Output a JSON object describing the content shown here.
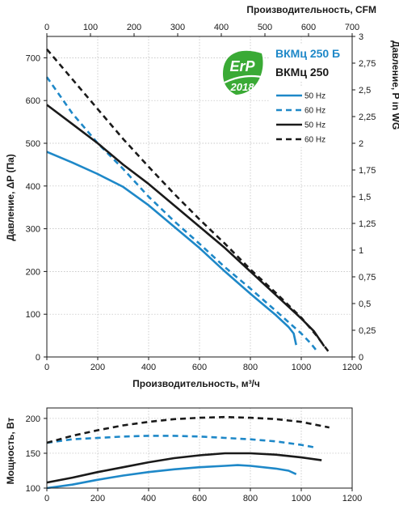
{
  "colors": {
    "blue": "#1e88c8",
    "black": "#1a1a1a",
    "erp_green": "#3aaa35",
    "model1_color": "#1e88c8",
    "model2_color": "#1a1a1a"
  },
  "badge": {
    "line1": "ErP",
    "line2": "2018"
  },
  "models": [
    "ВКМц 250 Б",
    "ВКМц 250"
  ],
  "chart_data": [
    {
      "type": "line",
      "xlabel": "Производительность, м³/ч",
      "ylabel": "Давление, ΔP (Па)",
      "x2label": "Производительность, CFM",
      "y2label": "Давление, P in WG",
      "xlim": [
        0,
        1200
      ],
      "ylim": [
        0,
        750
      ],
      "x2lim": [
        0,
        700
      ],
      "y2lim": [
        0,
        3
      ],
      "xticks": [
        "0",
        "200",
        "400",
        "600",
        "800",
        "1000",
        "1200"
      ],
      "yticks": [
        "0",
        "100",
        "200",
        "300",
        "400",
        "500",
        "600",
        "700"
      ],
      "x2ticks": [
        "0",
        "100",
        "200",
        "300",
        "400",
        "500",
        "600",
        "700"
      ],
      "y2ticks": [
        "0",
        "0,25",
        "0,5",
        "0,75",
        "1",
        "1,25",
        "1,5",
        "1,75",
        "2",
        "2,25",
        "2,5",
        "2,75",
        "3"
      ],
      "grid": true,
      "legend_position": "top-right",
      "series": [
        {
          "name": "50 Hz",
          "color": "#1e88c8",
          "dash": false,
          "x": [
            0,
            100,
            200,
            300,
            400,
            500,
            600,
            700,
            800,
            900,
            950,
            970,
            980
          ],
          "y": [
            480,
            455,
            428,
            398,
            355,
            305,
            255,
            200,
            148,
            98,
            70,
            55,
            28
          ]
        },
        {
          "name": "60 Hz",
          "color": "#1e88c8",
          "dash": true,
          "x": [
            0,
            100,
            200,
            300,
            400,
            500,
            600,
            700,
            800,
            900,
            1000,
            1040,
            1060
          ],
          "y": [
            655,
            570,
            500,
            440,
            375,
            318,
            265,
            210,
            160,
            108,
            55,
            30,
            15
          ]
        },
        {
          "name": "50 Hz",
          "color": "#1a1a1a",
          "dash": false,
          "x": [
            0,
            100,
            200,
            300,
            400,
            500,
            600,
            700,
            800,
            900,
            1000,
            1050,
            1090
          ],
          "y": [
            590,
            545,
            500,
            450,
            405,
            355,
            305,
            255,
            200,
            145,
            90,
            60,
            25
          ]
        },
        {
          "name": "60 Hz",
          "color": "#1a1a1a",
          "dash": true,
          "x": [
            0,
            100,
            200,
            300,
            400,
            500,
            600,
            700,
            800,
            900,
            1000,
            1060,
            1110
          ],
          "y": [
            720,
            650,
            580,
            510,
            445,
            382,
            322,
            265,
            205,
            150,
            92,
            50,
            10
          ]
        }
      ]
    },
    {
      "type": "line",
      "ylabel": "Мощность, Вт",
      "xlim": [
        0,
        1200
      ],
      "ylim": [
        100,
        215
      ],
      "xticks": [
        "0",
        "200",
        "400",
        "600",
        "800",
        "1000",
        "1200"
      ],
      "yticks": [
        "100",
        "150",
        "200"
      ],
      "grid": true,
      "series": [
        {
          "color": "#1e88c8",
          "dash": false,
          "x": [
            0,
            100,
            200,
            300,
            400,
            500,
            600,
            700,
            750,
            800,
            900,
            950,
            980
          ],
          "y": [
            100,
            105,
            112,
            118,
            123,
            127,
            130,
            132,
            133,
            132,
            128,
            125,
            120
          ]
        },
        {
          "color": "#1e88c8",
          "dash": true,
          "x": [
            0,
            100,
            200,
            300,
            400,
            500,
            600,
            700,
            800,
            900,
            1000,
            1060
          ],
          "y": [
            165,
            170,
            172,
            174,
            175,
            175,
            174,
            172,
            170,
            167,
            162,
            158
          ]
        },
        {
          "color": "#1a1a1a",
          "dash": false,
          "x": [
            0,
            100,
            200,
            300,
            400,
            500,
            600,
            700,
            800,
            900,
            1000,
            1080
          ],
          "y": [
            108,
            115,
            123,
            130,
            137,
            143,
            147,
            150,
            150,
            148,
            144,
            140
          ]
        },
        {
          "color": "#1a1a1a",
          "dash": true,
          "x": [
            0,
            100,
            200,
            300,
            400,
            500,
            600,
            700,
            800,
            900,
            1000,
            1110
          ],
          "y": [
            165,
            175,
            183,
            190,
            195,
            199,
            201,
            202,
            201,
            199,
            195,
            187
          ]
        }
      ]
    }
  ]
}
